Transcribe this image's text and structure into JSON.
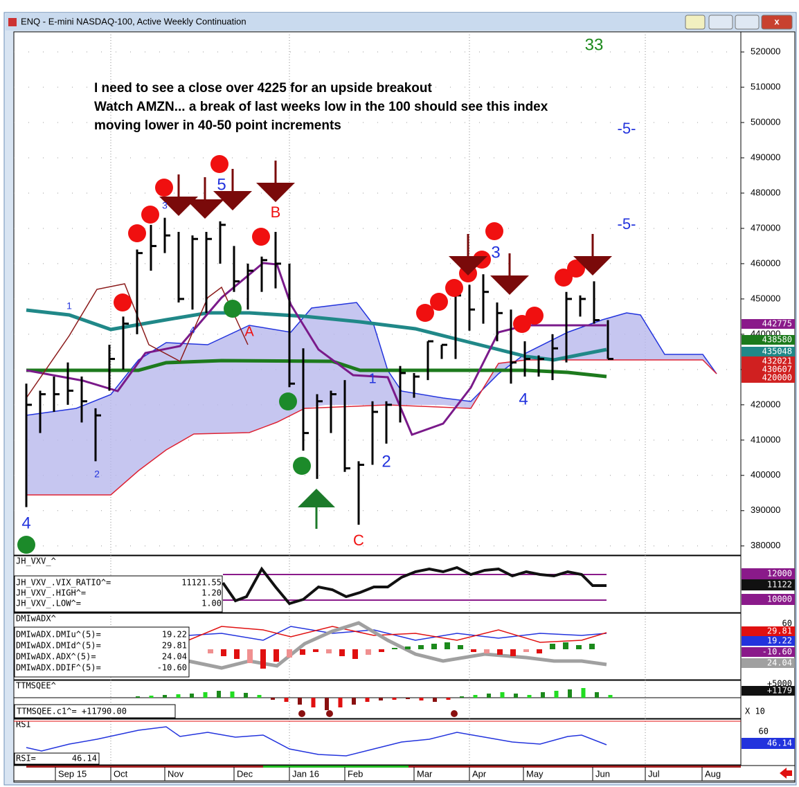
{
  "window": {
    "title": "ENQ - E-mini NASDAQ-100, Active Weekly Continuation"
  },
  "price_chart": {
    "count_label": "33",
    "annotations": [
      "I need to see a close over 4225 for an upside breakout",
      "Watch AMZN... a break of last weeks low in the 100 should see this index",
      "moving lower in 40-50 point increments"
    ],
    "wave_labels": [
      "4",
      "2",
      "1",
      "4",
      "5",
      "3",
      "B",
      "A",
      "C",
      "1",
      "2",
      "3",
      "4",
      "-5-",
      "-5-"
    ],
    "ylim": [
      377400,
      525700
    ],
    "yticks": [
      380000,
      390000,
      400000,
      410000,
      420000,
      430000,
      440000,
      450000,
      460000,
      470000,
      480000,
      490000,
      500000,
      510000,
      520000
    ],
    "bars": {
      "high": [
        426000,
        424000,
        428000,
        432000,
        428000,
        419000,
        437000,
        445000,
        464000,
        471000,
        473000,
        469000,
        468000,
        469000,
        472000,
        465000,
        460000,
        462000,
        469000,
        460000,
        436000,
        423000,
        424000,
        427000,
        404000,
        421000,
        421000,
        431000,
        429000,
        438000,
        437000,
        453000,
        454000,
        457000,
        449000,
        447000,
        438000,
        434000,
        440000,
        452000,
        451000,
        455000,
        444000
      ],
      "low": [
        391000,
        412000,
        418000,
        420000,
        415000,
        404000,
        424000,
        430000,
        440000,
        458000,
        463000,
        449000,
        447000,
        446000,
        460000,
        452000,
        447000,
        452000,
        453000,
        425000,
        407000,
        399000,
        412000,
        401000,
        386000,
        403000,
        409000,
        415000,
        422000,
        427000,
        433000,
        433000,
        441000,
        443000,
        438000,
        426000,
        428000,
        428000,
        427000,
        432000,
        445000,
        443000,
        433000
      ],
      "close": [
        420000,
        423000,
        423000,
        424000,
        421000,
        417000,
        433000,
        443000,
        463000,
        465000,
        468000,
        450000,
        467000,
        467000,
        471000,
        455000,
        458000,
        461000,
        460000,
        426000,
        412000,
        421000,
        423000,
        402000,
        403000,
        418000,
        420000,
        429000,
        428000,
        438000,
        437000,
        451000,
        447000,
        452000,
        446000,
        432000,
        433000,
        433000,
        436000,
        450000,
        450000,
        444000,
        433000
      ]
    },
    "price_tags": [
      "442775",
      "438580",
      "435048",
      "432021",
      "430607",
      "420000"
    ]
  },
  "vxv_panel": {
    "name": "JH_VXV_^",
    "legend": [
      [
        "JH_VXV_.VIX_RATIO^=",
        "11121.55"
      ],
      [
        "JH_VXV_.HIGH^=",
        "1.20"
      ],
      [
        "JH_VXV_.LOW^=",
        "1.00"
      ]
    ],
    "tags": [
      "12000",
      "11122",
      "10000"
    ]
  },
  "dmi_panel": {
    "name": "DMIwADX^",
    "legend": [
      [
        "DMIwADX.DMIu^(5)=",
        "19.22"
      ],
      [
        "DMIwADX.DMId^(5)=",
        "29.81"
      ],
      [
        "DMIwADX.ADX^(5)=",
        "24.04"
      ],
      [
        "DMIwADX.DDIF^(5)=",
        "-10.60"
      ]
    ],
    "tags": [
      "60",
      "29.81",
      "19.22",
      "-10.60",
      "24.04"
    ]
  },
  "ttm_panel": {
    "name": "TTMSQEE^",
    "legend": "TTMSQEE.c1^= +11790.00",
    "tags": [
      "+5000",
      "+1179"
    ],
    "scale": "X 10"
  },
  "rsi_panel": {
    "name": "RSI",
    "legend": [
      "RSI=",
      "46.14"
    ],
    "tags": [
      "60",
      "46.14"
    ]
  },
  "date_axis": [
    "Sep 15",
    "Oct",
    "Nov",
    "Dec",
    "Jan 16",
    "Feb",
    "Mar",
    "Apr",
    "May",
    "Jun",
    "Jul",
    "Aug"
  ]
}
